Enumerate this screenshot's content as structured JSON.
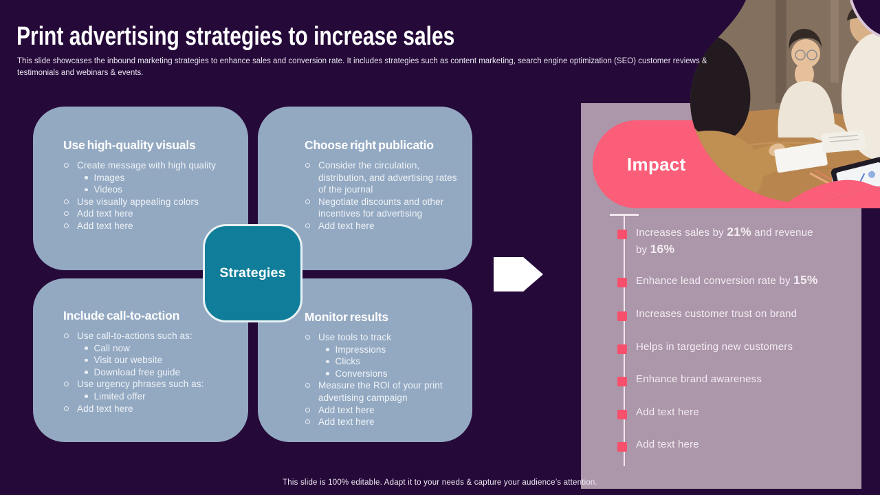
{
  "slide": {
    "title": "Print advertising strategies to increase sales",
    "subtitle": "This slide showcases the inbound marketing strategies to enhance sales and conversion rate. It includes strategies such as content marketing, search engine optimization (SEO) customer reviews & testimonials and webinars & events.",
    "footer": "This slide is 100% editable. Adapt it to your needs & capture your audience’s attention."
  },
  "center_label": "Strategies",
  "impact_label": "Impact",
  "strategy_boxes": [
    {
      "title": "Use high-quality visuals",
      "items": [
        {
          "level": 1,
          "text": "Create message with high quality"
        },
        {
          "level": 2,
          "text": "Images"
        },
        {
          "level": 2,
          "text": "Videos"
        },
        {
          "level": 1,
          "text": "Use visually appealing colors"
        },
        {
          "level": 1,
          "text": "Add text here"
        },
        {
          "level": 1,
          "text": "Add text here"
        }
      ]
    },
    {
      "title": "Choose right publicatio",
      "items": [
        {
          "level": 1,
          "text": "Consider the circulation, distribution, and advertising rates of the journal"
        },
        {
          "level": 1,
          "text": "Negotiate discounts and other incentives for advertising"
        },
        {
          "level": 1,
          "text": "Add text here"
        }
      ]
    },
    {
      "title": "Include call-to-action",
      "items": [
        {
          "level": 1,
          "text": "Use call-to-actions such as:"
        },
        {
          "level": 2,
          "text": "Call now"
        },
        {
          "level": 2,
          "text": "Visit our website"
        },
        {
          "level": 2,
          "text": "Download free guide"
        },
        {
          "level": 1,
          "text": "Use urgency phrases such as:"
        },
        {
          "level": 2,
          "text": "Limited offer"
        },
        {
          "level": 1,
          "text": "Add text here"
        }
      ]
    },
    {
      "title": "Monitor results",
      "items": [
        {
          "level": 1,
          "text": "Use tools to track"
        },
        {
          "level": 2,
          "text": "Impressions"
        },
        {
          "level": 2,
          "text": "Clicks"
        },
        {
          "level": 2,
          "text": "Conversions"
        },
        {
          "level": 1,
          "text": "Measure the ROI of your print advertising campaign"
        },
        {
          "level": 1,
          "text": "Add text here"
        },
        {
          "level": 1,
          "text": "Add text here"
        }
      ]
    }
  ],
  "impact_items": [
    {
      "segments": [
        {
          "text": "Increases sales by ",
          "bold": false
        },
        {
          "text": "21%",
          "bold": true
        },
        {
          "text": " and revenue by ",
          "bold": false
        },
        {
          "text": "16%",
          "bold": true
        }
      ]
    },
    {
      "segments": [
        {
          "text": "Enhance lead conversion rate by ",
          "bold": false
        },
        {
          "text": "15%",
          "bold": true
        }
      ]
    },
    {
      "segments": [
        {
          "text": "Increases customer trust on brand",
          "bold": false
        }
      ]
    },
    {
      "segments": [
        {
          "text": "Helps in targeting new customers",
          "bold": false
        }
      ]
    },
    {
      "segments": [
        {
          "text": "Enhance brand awareness",
          "bold": false
        }
      ]
    },
    {
      "segments": [
        {
          "text": "Add text here",
          "bold": false
        }
      ]
    },
    {
      "segments": [
        {
          "text": "Add text here",
          "bold": false
        }
      ]
    }
  ],
  "icons": {
    "flow_arrow": "right-pentagon-arrow",
    "bullet_level1": "circle-outline",
    "bullet_level2": "filled-dot",
    "timeline_marker": "pink-square"
  },
  "colors": {
    "background": "#250939",
    "box_blue": "#93A9C2",
    "badge_teal": "#107E9A",
    "accent_pink": "#FB5E78",
    "panel_mauve": "#AC96A9",
    "marker_pink": "#F8506C",
    "text_light": "#FFFFFF"
  }
}
